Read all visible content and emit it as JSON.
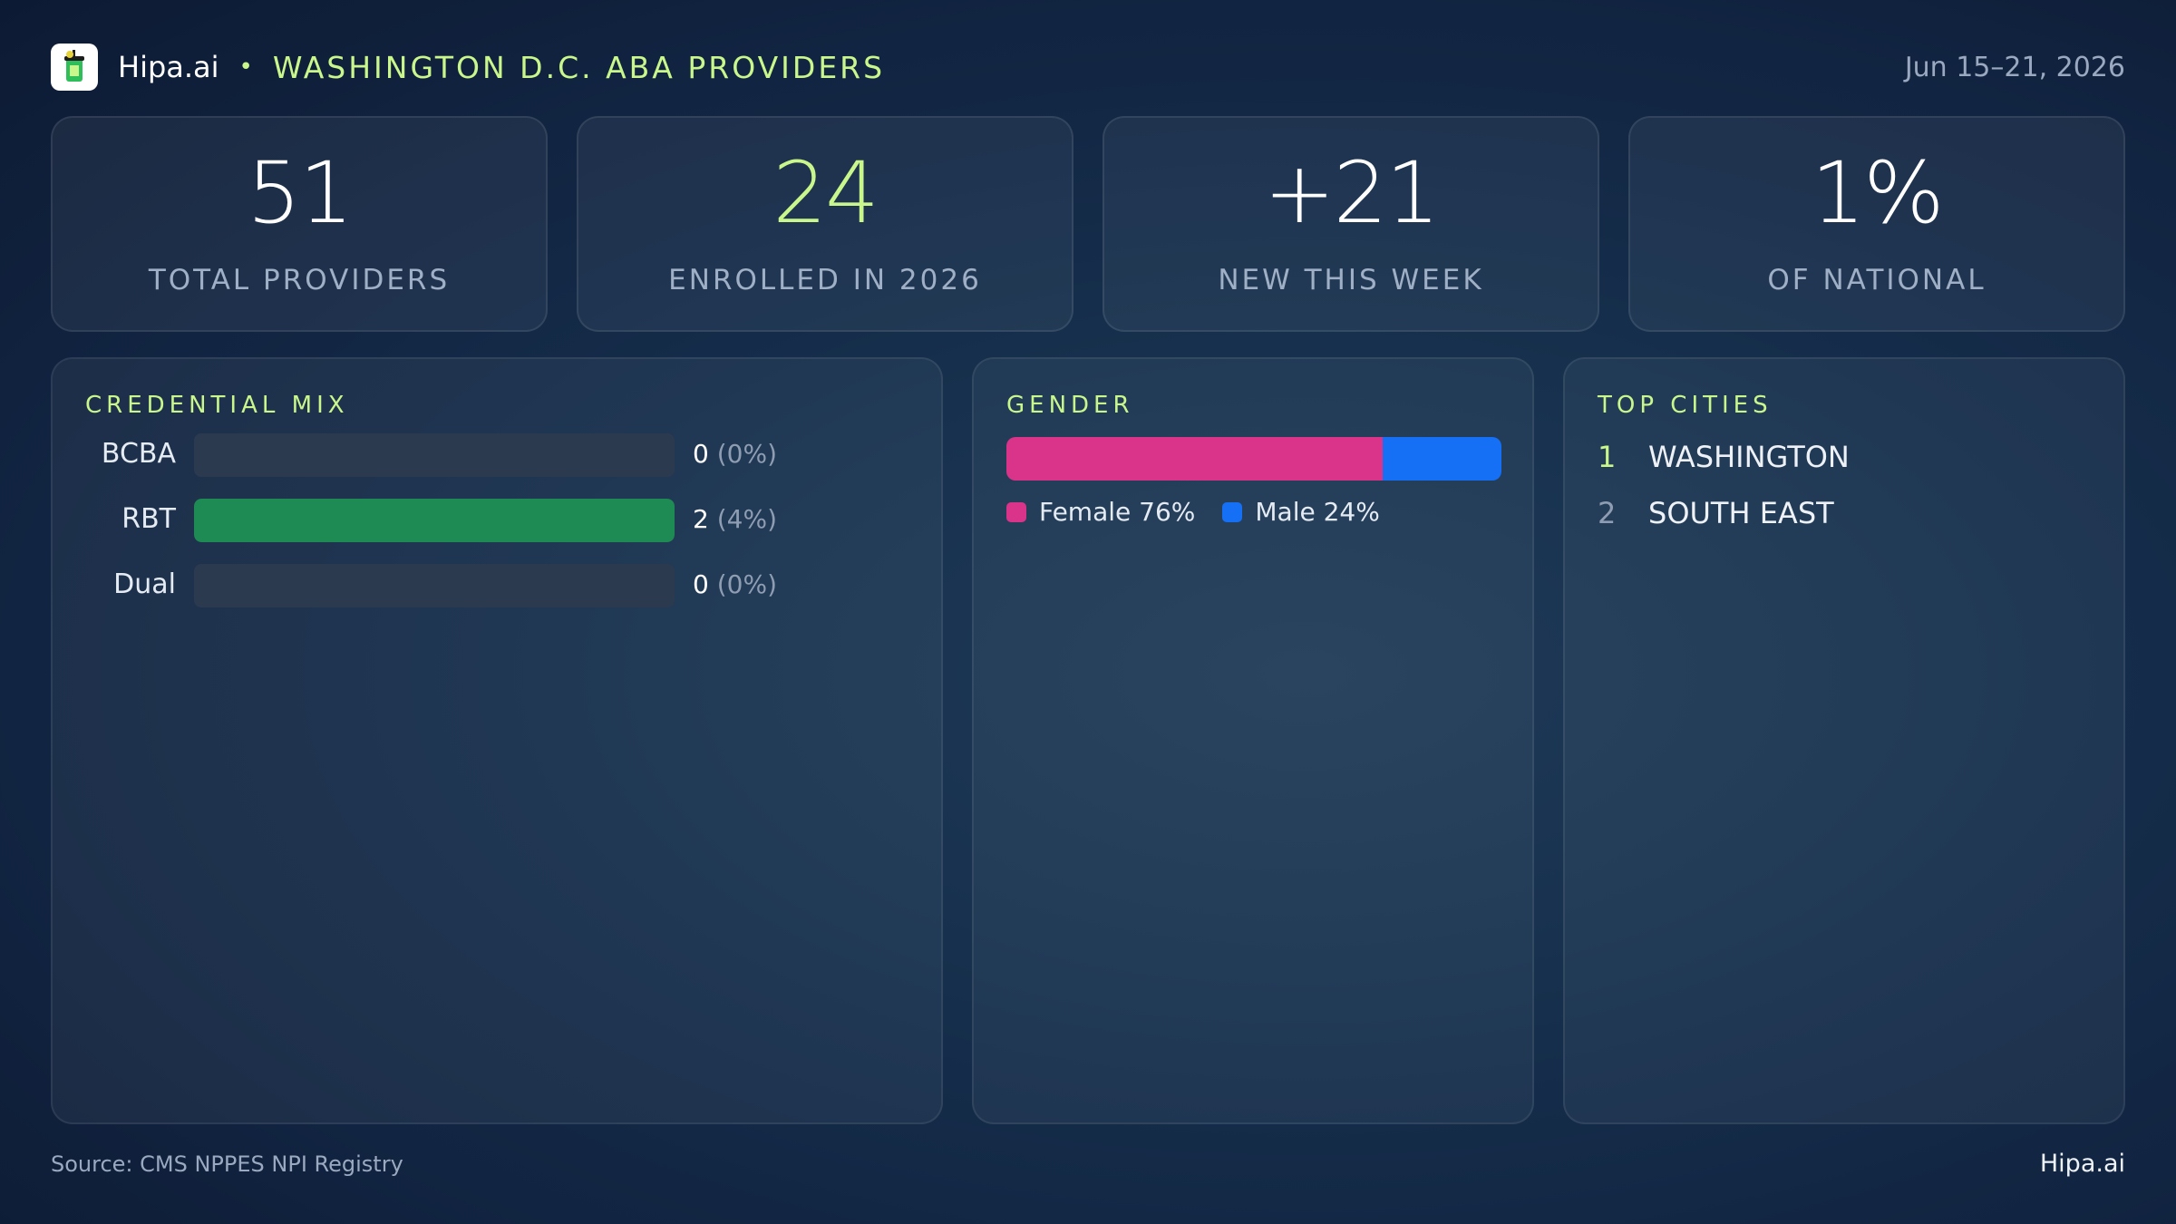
{
  "header": {
    "brand": "Hipa.ai",
    "separator": "•",
    "headline": "WASHINGTON D.C. ABA PROVIDERS",
    "date_range": "Jun 15–21, 2026"
  },
  "kpis": [
    {
      "value": "51",
      "label": "TOTAL PROVIDERS",
      "accent": false
    },
    {
      "value": "24",
      "label": "ENROLLED IN 2026",
      "accent": true
    },
    {
      "value": "+21",
      "label": "NEW THIS WEEK",
      "accent": false
    },
    {
      "value": "1%",
      "label": "OF NATIONAL",
      "accent": false
    }
  ],
  "credential_mix": {
    "title": "CREDENTIAL MIX",
    "rows": [
      {
        "label": "BCBA",
        "count": "0",
        "pct": "(0%)",
        "fill": 0
      },
      {
        "label": "RBT",
        "count": "2",
        "pct": "(4%)",
        "fill": 1
      },
      {
        "label": "Dual",
        "count": "0",
        "pct": "(0%)",
        "fill": 0
      }
    ],
    "colors": {
      "fill": "#1e8a54",
      "track": "#2c3a50"
    }
  },
  "gender": {
    "title": "GENDER",
    "female_pct": 76,
    "male_pct": 24,
    "female_label": "Female 76%",
    "male_label": "Male 24%",
    "colors": {
      "female": "#d9348a",
      "male": "#1570f5"
    }
  },
  "top_cities": {
    "title": "TOP CITIES",
    "items": [
      {
        "rank": "1",
        "name": "WASHINGTON"
      },
      {
        "rank": "2",
        "name": "SOUTH EAST"
      }
    ]
  },
  "footer": {
    "source": "Source: CMS NPPES NPI Registry",
    "brand": "Hipa.ai"
  },
  "theme": {
    "accent": "#c9f78c"
  }
}
